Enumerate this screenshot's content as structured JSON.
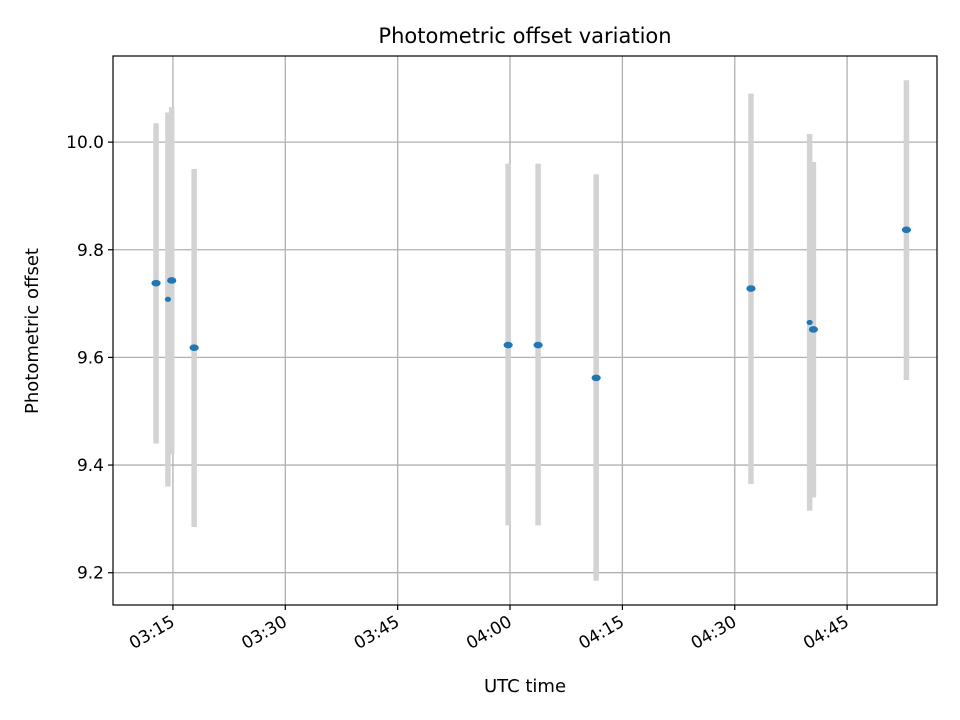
{
  "chart_data": {
    "type": "scatter",
    "title": "Photometric offset variation",
    "xlabel": "UTC time",
    "ylabel": "Photometric offset",
    "x_axis": "time",
    "x_ticks": [
      "03:15",
      "03:30",
      "03:45",
      "04:00",
      "04:15",
      "04:30",
      "04:45"
    ],
    "y_ticks": [
      "9.2",
      "9.4",
      "9.6",
      "9.8",
      "10.0"
    ],
    "xlim": [
      "03:07",
      "04:57"
    ],
    "ylim": [
      9.14,
      10.16
    ],
    "grid": true,
    "colors": {
      "marker": "#1f77b4",
      "errorbar": "#d3d3d3",
      "grid": "#b0b0b0"
    },
    "points": [
      {
        "x": "03:12:45",
        "y": 9.738,
        "err_low": 9.44,
        "err_high": 10.035,
        "marker_size": "large"
      },
      {
        "x": "03:14:20",
        "y": 9.708,
        "err_low": 9.36,
        "err_high": 10.055,
        "marker_size": "small"
      },
      {
        "x": "03:14:50",
        "y": 9.743,
        "err_low": 9.42,
        "err_high": 10.065,
        "marker_size": "large"
      },
      {
        "x": "03:17:50",
        "y": 9.618,
        "err_low": 9.285,
        "err_high": 9.95,
        "marker_size": "large"
      },
      {
        "x": "03:59:45",
        "y": 9.623,
        "err_low": 9.288,
        "err_high": 9.96,
        "marker_size": "large"
      },
      {
        "x": "04:03:45",
        "y": 9.623,
        "err_low": 9.288,
        "err_high": 9.96,
        "marker_size": "large"
      },
      {
        "x": "04:11:30",
        "y": 9.562,
        "err_low": 9.185,
        "err_high": 9.94,
        "marker_size": "large"
      },
      {
        "x": "04:32:10",
        "y": 9.728,
        "err_low": 9.365,
        "err_high": 10.09,
        "marker_size": "large"
      },
      {
        "x": "04:40:00",
        "y": 9.665,
        "err_low": 9.315,
        "err_high": 10.015,
        "marker_size": "small"
      },
      {
        "x": "04:40:30",
        "y": 9.652,
        "err_low": 9.34,
        "err_high": 9.963,
        "marker_size": "large"
      },
      {
        "x": "04:52:55",
        "y": 9.837,
        "err_low": 9.558,
        "err_high": 10.115,
        "marker_size": "large"
      }
    ]
  }
}
